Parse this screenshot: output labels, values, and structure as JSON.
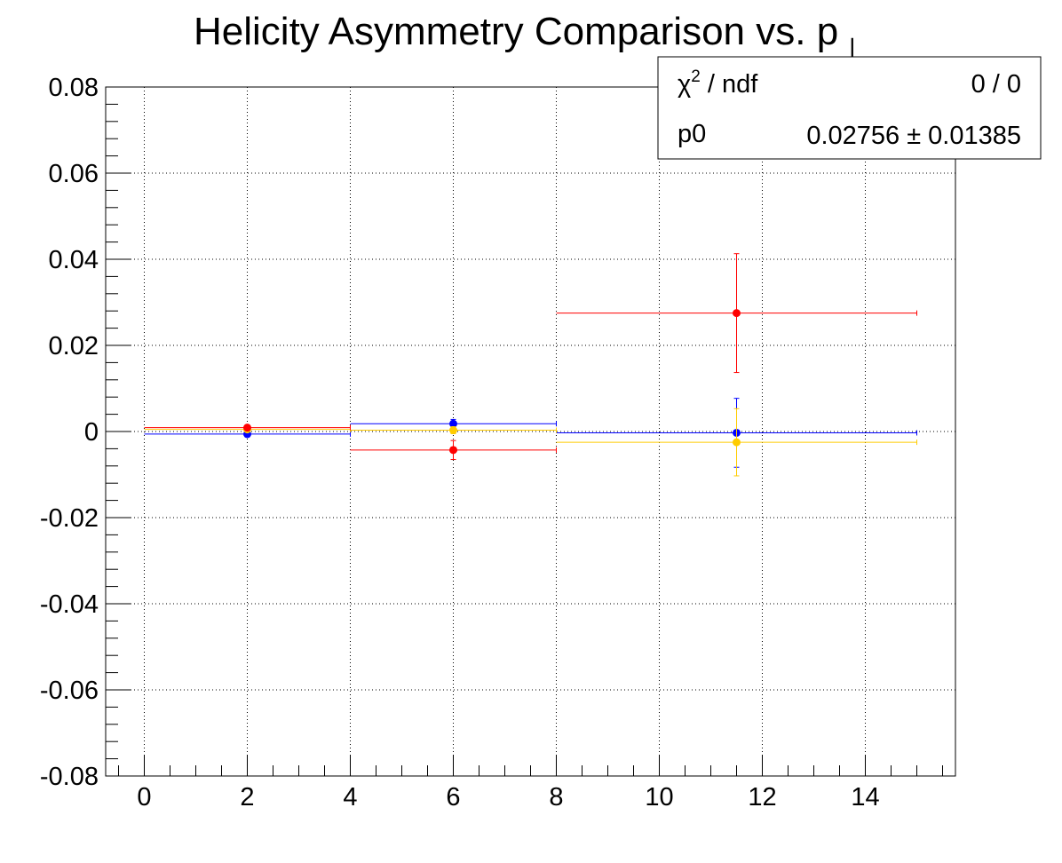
{
  "chart_data": {
    "type": "scatter",
    "title_main": "Helicity Asymmetry Comparison vs. p",
    "title_sub": "⊥",
    "xlabel": "",
    "ylabel": "",
    "xlim": [
      -0.75,
      15.75
    ],
    "ylim": [
      -0.08,
      0.08
    ],
    "xticks": [
      {
        "v": 0,
        "label": "0"
      },
      {
        "v": 2,
        "label": "2"
      },
      {
        "v": 4,
        "label": "4"
      },
      {
        "v": 6,
        "label": "6"
      },
      {
        "v": 8,
        "label": "8"
      },
      {
        "v": 10,
        "label": "10"
      },
      {
        "v": 12,
        "label": "12"
      },
      {
        "v": 14,
        "label": "14"
      }
    ],
    "yticks": [
      {
        "v": 0.08,
        "label": "0.08"
      },
      {
        "v": 0.06,
        "label": "0.06"
      },
      {
        "v": 0.04,
        "label": "0.04"
      },
      {
        "v": 0.02,
        "label": "0.02"
      },
      {
        "v": 0,
        "label": "0"
      },
      {
        "v": -0.02,
        "label": "-0.02"
      },
      {
        "v": -0.04,
        "label": "-0.04"
      },
      {
        "v": -0.06,
        "label": "-0.06"
      },
      {
        "v": -0.08,
        "label": "-0.08"
      }
    ],
    "grid": true,
    "series": [
      {
        "color": "#0000ff",
        "points": [
          {
            "x": 2,
            "xlo": 0,
            "xhi": 4,
            "y": -0.0006,
            "err": 0.0005
          },
          {
            "x": 6,
            "xlo": 4,
            "xhi": 8,
            "y": 0.0018,
            "err": 0.001
          },
          {
            "x": 11.5,
            "xlo": 8,
            "xhi": 15,
            "y": -0.0003,
            "err": 0.008
          }
        ]
      },
      {
        "color": "#ffcc00",
        "points": [
          {
            "x": 2,
            "xlo": 0,
            "xhi": 4,
            "y": 0.0005,
            "err": 0.0003
          },
          {
            "x": 6,
            "xlo": 4,
            "xhi": 8,
            "y": 0.0003,
            "err": 0.0008
          },
          {
            "x": 11.5,
            "xlo": 8,
            "xhi": 15,
            "y": -0.0025,
            "err": 0.0078
          }
        ]
      },
      {
        "color": "#ff0000",
        "points": [
          {
            "x": 2,
            "xlo": 0,
            "xhi": 4,
            "y": 0.0009,
            "err": 0.0004
          },
          {
            "x": 6,
            "xlo": 4,
            "xhi": 8,
            "y": -0.0043,
            "err": 0.0022
          },
          {
            "x": 11.5,
            "xlo": 8,
            "xhi": 15,
            "y": 0.0275,
            "err": 0.0138
          }
        ]
      }
    ]
  },
  "stats_box": {
    "chi2_symbol": "χ",
    "chi2_sup": "2",
    "chi2_label": " / ndf",
    "chi2_value": "0 / 0",
    "p0_label": "p0",
    "p0_value": "0.02756 ± 0.01385"
  }
}
